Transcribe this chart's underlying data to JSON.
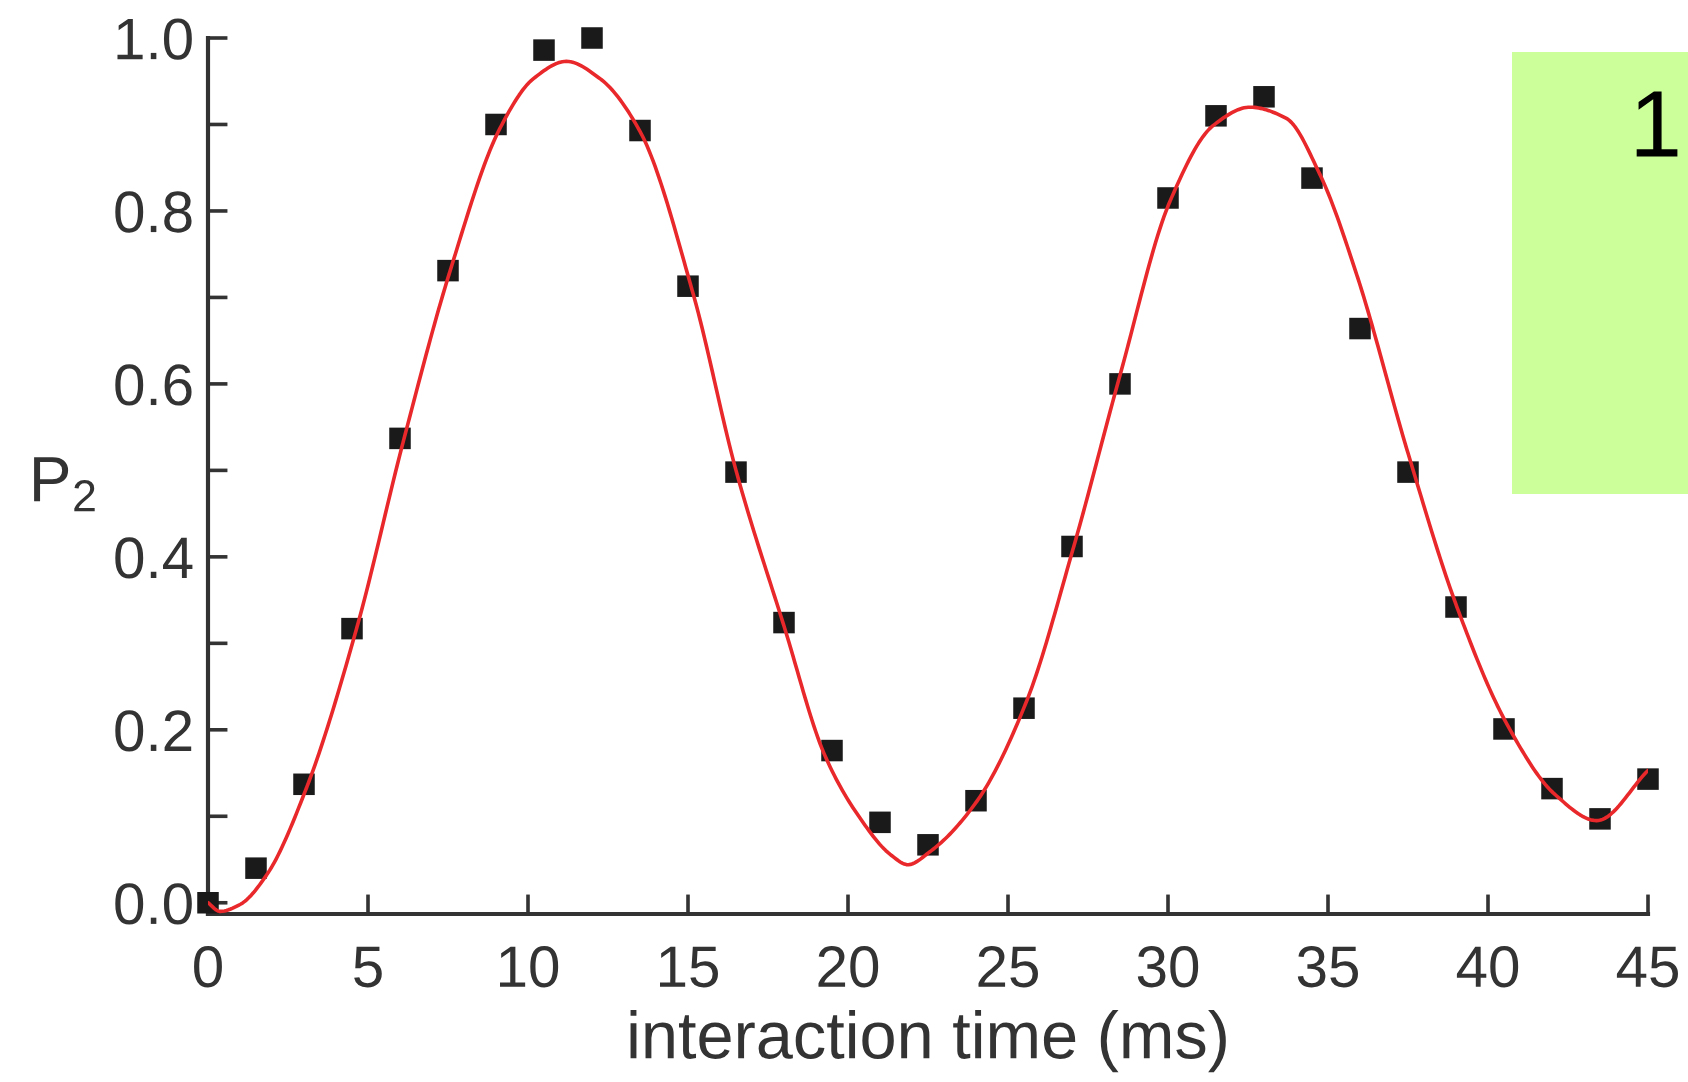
{
  "chart_data": {
    "type": "scatter",
    "xlabel": "interaction time (ms)",
    "ylabel": "P$_{2}$",
    "xlim": [
      0,
      45
    ],
    "ylim": [
      -0.013,
      1.0
    ],
    "xticks": [
      0,
      5,
      10,
      15,
      20,
      25,
      30,
      35,
      40,
      45
    ],
    "yticks": [
      {
        "value": 0,
        "label": "0.0"
      },
      {
        "value": 0.1,
        "label": null
      },
      0.2,
      {
        "value": 0.3,
        "label": null
      },
      0.4,
      {
        "value": 0.5,
        "label": null
      },
      0.6,
      {
        "value": 0.7,
        "label": null
      },
      0.8,
      {
        "value": 0.9,
        "label": null
      },
      {
        "value": 1,
        "label": "1.0"
      }
    ],
    "annotations": [
      "1"
    ],
    "series": [
      {
        "type": "scatter",
        "marker": "square",
        "color": "#1a1a1a",
        "x": [
          0,
          1.5,
          3,
          4.5,
          6,
          7.5,
          9,
          10.5,
          12,
          13.5,
          15,
          16.5,
          18,
          19.5,
          21,
          22.5,
          24,
          25.5,
          27,
          28.5,
          30,
          31.5,
          33,
          34.5,
          36,
          37.5,
          39,
          40.5,
          42,
          43.5,
          45
        ],
        "values": [
          0.0,
          0.04,
          0.137,
          0.317,
          0.537,
          0.731,
          0.9,
          0.986,
          1.0,
          0.893,
          0.713,
          0.498,
          0.324,
          0.176,
          0.093,
          0.067,
          0.118,
          0.225,
          0.412,
          0.6,
          0.815,
          0.91,
          0.932,
          0.838,
          0.664,
          0.498,
          0.342,
          0.201,
          0.132,
          0.097,
          0.143
        ]
      },
      {
        "type": "line",
        "line_style": "solid",
        "color": "#e8282a",
        "x": [
          0,
          0.375,
          1.0,
          1.83,
          3.08,
          4.65,
          6.1,
          7.56,
          9.13,
          10.17,
          11.2,
          12.25,
          13.5,
          15.17,
          16.5,
          18.0,
          19.27,
          20.3,
          21.35,
          21.87,
          22.56,
          24.02,
          25.58,
          27.04,
          28.5,
          30.06,
          31.42,
          32.56,
          33.7,
          34.75,
          35.9,
          37.5,
          39.0,
          40.6,
          42.1,
          43.4,
          45.0
        ],
        "values": [
          0.0,
          -0.01,
          -0.002,
          0.032,
          0.133,
          0.318,
          0.533,
          0.73,
          0.896,
          0.953,
          0.973,
          0.953,
          0.892,
          0.703,
          0.5,
          0.32,
          0.171,
          0.102,
          0.055,
          0.044,
          0.059,
          0.117,
          0.233,
          0.41,
          0.61,
          0.811,
          0.899,
          0.92,
          0.907,
          0.842,
          0.726,
          0.52,
          0.345,
          0.206,
          0.125,
          0.095,
          0.153
        ]
      }
    ]
  }
}
